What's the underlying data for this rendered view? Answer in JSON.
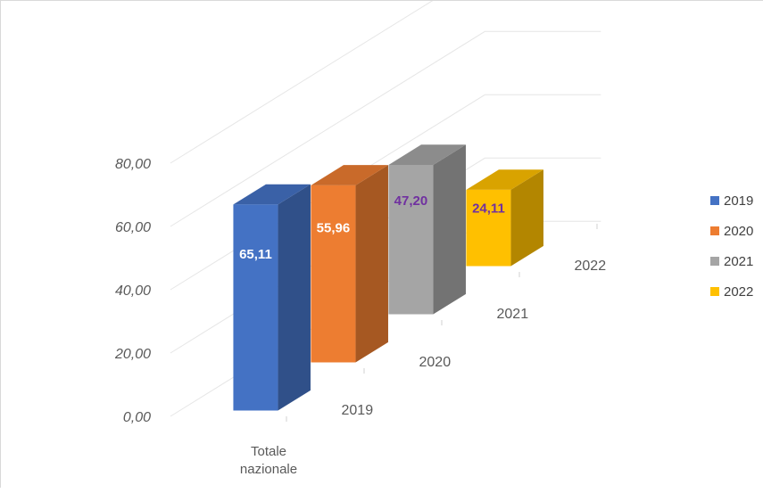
{
  "chart_data": {
    "type": "bar",
    "variant": "3d-column",
    "categories": [
      "Totale nazionale"
    ],
    "series": [
      {
        "name": "2019",
        "values": [
          65.11
        ],
        "label": "65,11"
      },
      {
        "name": "2020",
        "values": [
          55.96
        ],
        "label": "55,96"
      },
      {
        "name": "2021",
        "values": [
          47.2
        ],
        "label": "47,20"
      },
      {
        "name": "2022",
        "values": [
          24.11
        ],
        "label": "24,11"
      }
    ],
    "yticks": [
      "0,00",
      "20,00",
      "40,00",
      "60,00",
      "80,00"
    ],
    "ylim": [
      0,
      80
    ],
    "grid": true,
    "legend": "right",
    "colors": {
      "2019": "#4472c4",
      "2020": "#ed7d31",
      "2021": "#a5a5a5",
      "2022": "#ffc000",
      "label_light": "#ffffff",
      "label_dark": "#7030a0"
    }
  }
}
